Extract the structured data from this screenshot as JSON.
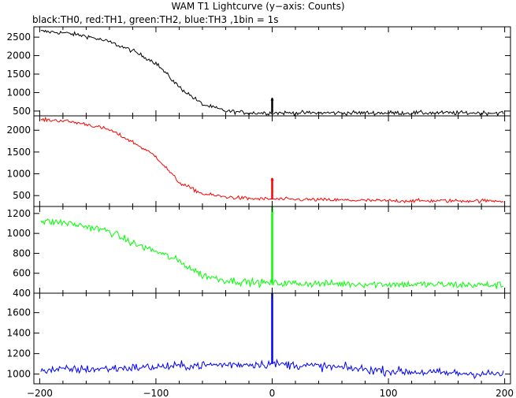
{
  "title": "WAM T1 Lightcurve (y−axis: Counts)",
  "subtitle": "black:TH0,  red:TH1,  green:TH2,  blue:TH3 ,1bin  =  1s",
  "chart_data": {
    "type": "line",
    "title": "WAM T1 Lightcurve (y−axis: Counts)",
    "subtitle": "black:TH0,  red:TH1,  green:TH2,  blue:TH3 ,1bin  =  1s",
    "x_range": [
      -205,
      205
    ],
    "x_ticks": [
      -200,
      -100,
      0,
      100,
      200
    ],
    "x_tick_labels": [
      "−200",
      "−100",
      "0",
      "100",
      "200"
    ],
    "bin_size_s": 1,
    "trigger_x": 0,
    "grid": false,
    "panels": [
      {
        "name": "TH0",
        "color": "#000000",
        "ylim": [
          370,
          2780
        ],
        "yticks": [
          500,
          1000,
          1500,
          2000,
          2500
        ],
        "profile_x": [
          -200,
          -180,
          -160,
          -140,
          -120,
          -100,
          -80,
          -60,
          -40,
          -20,
          0,
          100,
          200
        ],
        "profile_y": [
          2660,
          2620,
          2530,
          2370,
          2130,
          1800,
          1150,
          680,
          500,
          450,
          450,
          450,
          450
        ],
        "noise": 60,
        "spike_peak": 850,
        "spike_base": 450
      },
      {
        "name": "TH1",
        "color": "#ff0000",
        "ylim": [
          250,
          2330
        ],
        "yticks": [
          500,
          1000,
          1500,
          2000
        ],
        "profile_x": [
          -200,
          -180,
          -160,
          -140,
          -120,
          -100,
          -80,
          -60,
          -40,
          -20,
          0,
          100,
          200
        ],
        "profile_y": [
          2240,
          2220,
          2140,
          2010,
          1730,
          1400,
          800,
          540,
          470,
          430,
          420,
          380,
          380
        ],
        "noise": 45,
        "spike_peak": 900,
        "spike_base": 420
      },
      {
        "name": "TH2",
        "color": "#00ff00",
        "ylim": [
          400,
          1270
        ],
        "yticks": [
          400,
          600,
          800,
          1000,
          1200
        ],
        "profile_x": [
          -200,
          -180,
          -160,
          -140,
          -120,
          -100,
          -80,
          -60,
          -40,
          -20,
          0,
          100,
          200
        ],
        "profile_y": [
          1120,
          1110,
          1070,
          1020,
          900,
          820,
          720,
          580,
          530,
          510,
          500,
          490,
          480
        ],
        "noise": 40,
        "spike_peak": 1270,
        "spike_base": 500
      },
      {
        "name": "TH3",
        "color": "#0000ff",
        "ylim": [
          905,
          1790
        ],
        "yticks": [
          1000,
          1200,
          1400,
          1600
        ],
        "profile_x": [
          -200,
          -150,
          -100,
          -50,
          0,
          50,
          100,
          150,
          200
        ],
        "profile_y": [
          1040,
          1050,
          1070,
          1090,
          1100,
          1070,
          1030,
          1010,
          1000
        ],
        "noise": 45,
        "spike_peak": 1790,
        "spike_base": 1100
      }
    ]
  }
}
